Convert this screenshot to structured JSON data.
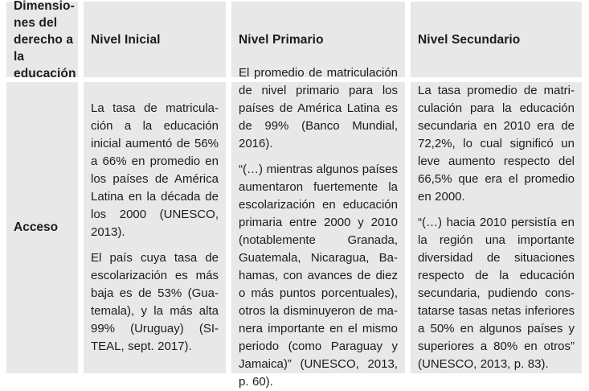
{
  "colors": {
    "cell_background": "#e8e8e8",
    "text": "#1c1c1c",
    "page_background": "#ffffff"
  },
  "table": {
    "header": {
      "dimension_column": "Dimensio­nes del de­recho a la educación",
      "columns": [
        "Nivel Inicial",
        "Nivel Primario",
        "Nivel Secundario"
      ]
    },
    "rows": [
      {
        "dimension": "Acceso",
        "inicial": {
          "paragraphs": [
            "La tasa de matricula­ción a la educación inicial aumentó de 56% a 66% en pro­medio en los países de América Latina en la década de los 2000 (UNESCO, 2013).",
            "El país cuya tasa de escolarización es más baja es de 53% (Gua­temala), y la más alta 99% (Uruguay) (SI­TEAL, sept. 2017)."
          ]
        },
        "primario": {
          "paragraphs": [
            "El promedio de matriculación de nivel primario para los paí­ses de América Latina es de 99% (Banco Mundial, 2016).",
            "“(…) mientras algunos países aumentaron fuertemente la escolarización en educación primaria entre 2000 y 2010 (notablemente Granada, Guatemala, Nicaragua, Ba­hamas, con avances de diez o más puntos porcentuales), otros la disminuyeron de ma­nera importante en el mismo periodo (como Paraguay y Ja­maica)” (UNESCO, 2013, p. 60)."
          ]
        },
        "secundario": {
          "paragraphs": [
            "La tasa promedio de matri­culación para la educación secundaria en 2010 era de 72,2%, lo cual significó un leve aumento respecto del 66,5% que era el promedio en 2000.",
            "“(…) hacia 2010 persistía en la región una importante diversidad de situaciones respecto de la educación secundaria, pudiendo cons­tatarse tasas netas inferio­res a 50% en algunos países y superiores a 80% en otros” (UNESCO, 2013, p. 83)."
          ]
        }
      }
    ]
  }
}
